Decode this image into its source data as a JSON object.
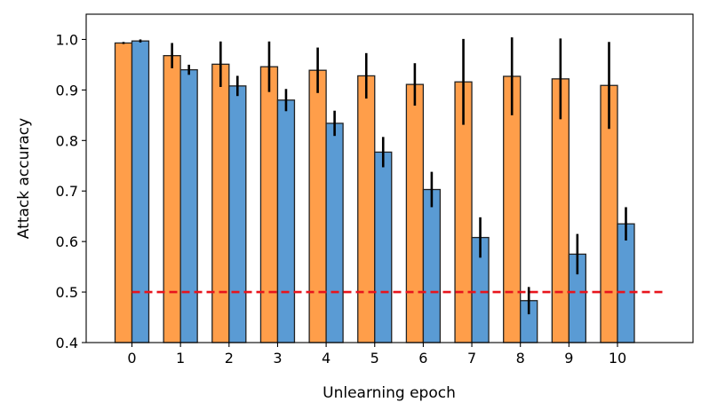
{
  "chart_data": {
    "type": "bar",
    "xlabel": "Unlearning epoch",
    "ylabel": "Attack accuracy",
    "categories": [
      "0",
      "1",
      "2",
      "3",
      "4",
      "5",
      "6",
      "7",
      "8",
      "9",
      "10"
    ],
    "ylim": [
      0.4,
      1.05
    ],
    "yticks": [
      "0.4",
      "0.5",
      "0.6",
      "0.7",
      "0.8",
      "0.9",
      "1.0"
    ],
    "grid": false,
    "series": [
      {
        "color": "#ff9e4a",
        "values": [
          0.993,
          0.968,
          0.951,
          0.946,
          0.939,
          0.928,
          0.911,
          0.916,
          0.927,
          0.922,
          0.909
        ],
        "errors": [
          0.002,
          0.025,
          0.045,
          0.05,
          0.045,
          0.045,
          0.042,
          0.085,
          0.077,
          0.08,
          0.086
        ]
      },
      {
        "color": "#5a9bd4",
        "values": [
          0.997,
          0.94,
          0.908,
          0.88,
          0.834,
          0.777,
          0.703,
          0.608,
          0.483,
          0.575,
          0.635
        ],
        "errors": [
          0.003,
          0.01,
          0.02,
          0.022,
          0.025,
          0.03,
          0.035,
          0.04,
          0.027,
          0.04,
          0.033
        ]
      }
    ],
    "reference_line": {
      "value": 0.5,
      "color": "#e8141c",
      "style": "dashed",
      "x_from": 0,
      "x_to": 11
    }
  }
}
